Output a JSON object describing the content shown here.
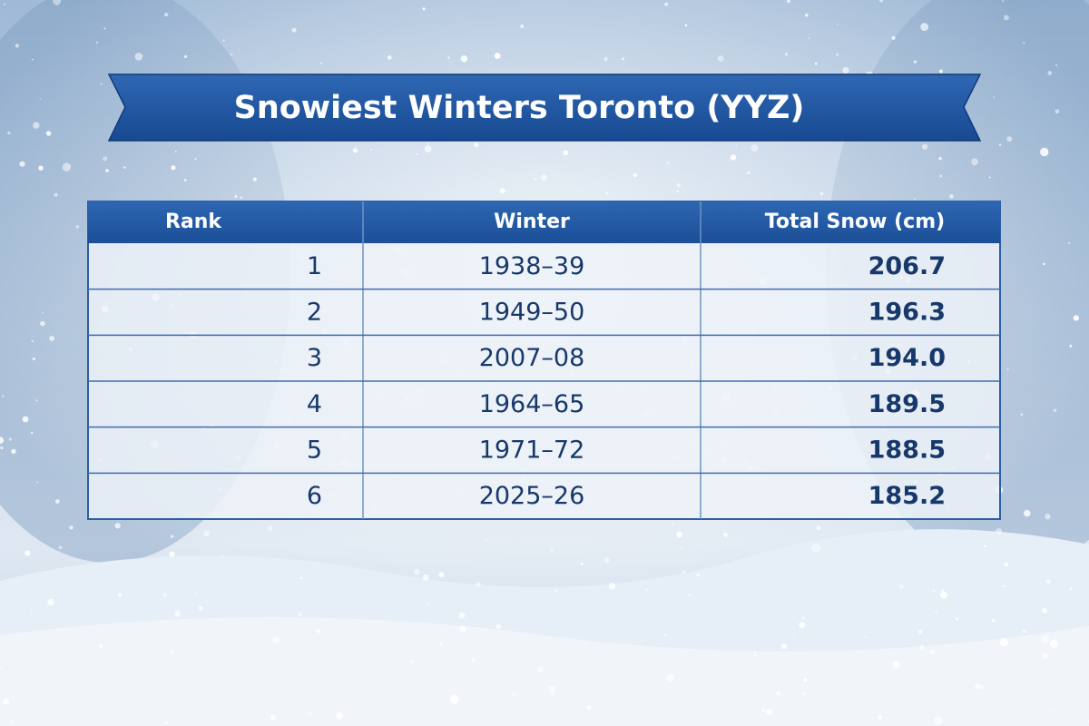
{
  "header": {
    "title": "Snowiest Winters Toronto (YYZ)"
  },
  "table": {
    "columns": [
      "Rank",
      "Winter",
      "Total Snow (cm)"
    ],
    "rows": [
      [
        "1",
        "1938–39",
        "206.7"
      ],
      [
        "2",
        "1949–50",
        "196.3"
      ],
      [
        "3",
        "2007–08",
        "194.0"
      ],
      [
        "4",
        "1964–65",
        "189.5"
      ],
      [
        "5",
        "1971–72",
        "188.5"
      ],
      [
        "6",
        "2025–26",
        "185.2"
      ]
    ]
  }
}
